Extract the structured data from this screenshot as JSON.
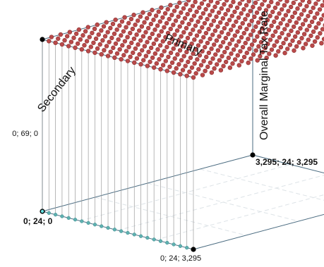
{
  "chart_data": {
    "type": "scatter",
    "dimensions": 3,
    "title": "",
    "axes": {
      "x": {
        "title": "Primary",
        "range": [
          24,
          3295
        ]
      },
      "y": {
        "title": "Secondary",
        "range": [
          24,
          3295
        ]
      },
      "z": {
        "title": "Overall Marginal Tax Rate",
        "range": [
          0,
          69
        ]
      }
    },
    "corner_labels": [
      {
        "key": "top_left",
        "text": "0; 69; 0"
      },
      {
        "key": "origin",
        "text": "0; 24; 0"
      },
      {
        "key": "front",
        "text": "0; 24; 3,295"
      },
      {
        "key": "right",
        "text": "3,295; 24; 3,295"
      }
    ],
    "series": [
      {
        "rate_surface": {
          "grid_size": [
            24,
            24
          ],
          "x_range": [
            24,
            3295
          ],
          "y_range": [
            24,
            3295
          ],
          "z_value": 69
        },
        "low_edge_points": {
          "count": 24,
          "z_value": 0
        }
      }
    ],
    "grid": true,
    "colors": {
      "surface": "#b94a4a",
      "low_points": "#5fb0b0",
      "box_edges": "#4a6b80"
    }
  }
}
